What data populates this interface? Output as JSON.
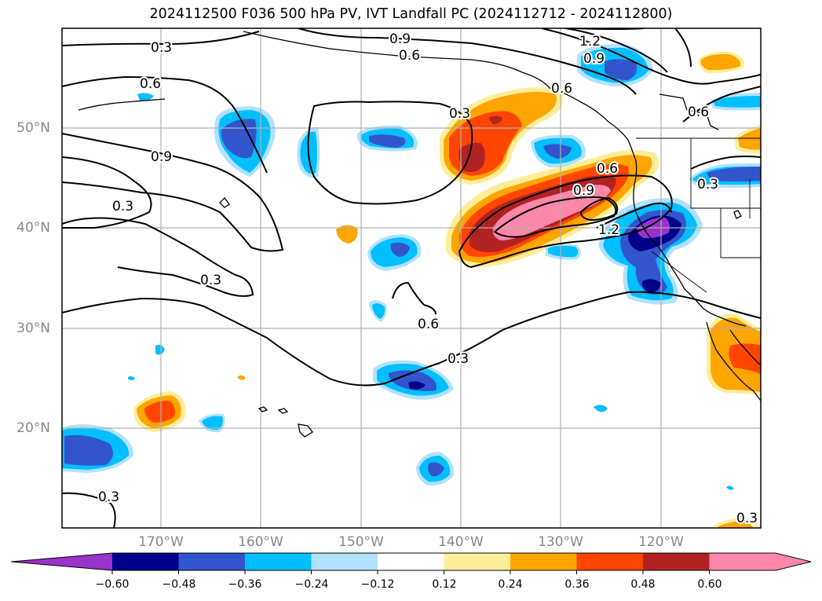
{
  "title": "2024112500 F036 500 hPa PV, IVT Landfall PC (2024112712 - 2024112800)",
  "lat_labels": [
    "50°N",
    "40°N",
    "30°N",
    "20°N"
  ],
  "lon_labels": [
    "170°W",
    "160°W",
    "150°W",
    "140°W",
    "130°W",
    "120°W"
  ],
  "contour_labels": [
    "0.3",
    "0.9",
    "0.6",
    "1.2",
    "0.9",
    "0.6",
    "0.9",
    "0.3",
    "0.3",
    "0.6",
    "0.9",
    "1.2",
    "0.3",
    "0.6",
    "0.3",
    "0.3",
    "0.3",
    "0.6",
    "0.6",
    "0.3"
  ],
  "colorbar": {
    "ticks": [
      "−0.60",
      "−0.48",
      "−0.36",
      "−0.24",
      "−0.12",
      "0.12",
      "0.24",
      "0.36",
      "0.48",
      "0.60"
    ],
    "colors": [
      "#9933cc",
      "#00008b",
      "#3355cc",
      "#00bfff",
      "#b0e2ff",
      "#ffffff",
      "#ffee99",
      "#ffa500",
      "#ff4500",
      "#b22222",
      "#ff88aa",
      "#ff88aa"
    ]
  },
  "fill_colors": {
    "purple": "#9933cc",
    "navy": "#00008b",
    "royal": "#3355cc",
    "sky": "#00bfff",
    "pale_blue": "#b0e2ff",
    "pale_yellow": "#ffee99",
    "orange": "#ffa500",
    "red_orange": "#ff4500",
    "firebrick": "#b22222",
    "pink": "#ff88aa"
  }
}
